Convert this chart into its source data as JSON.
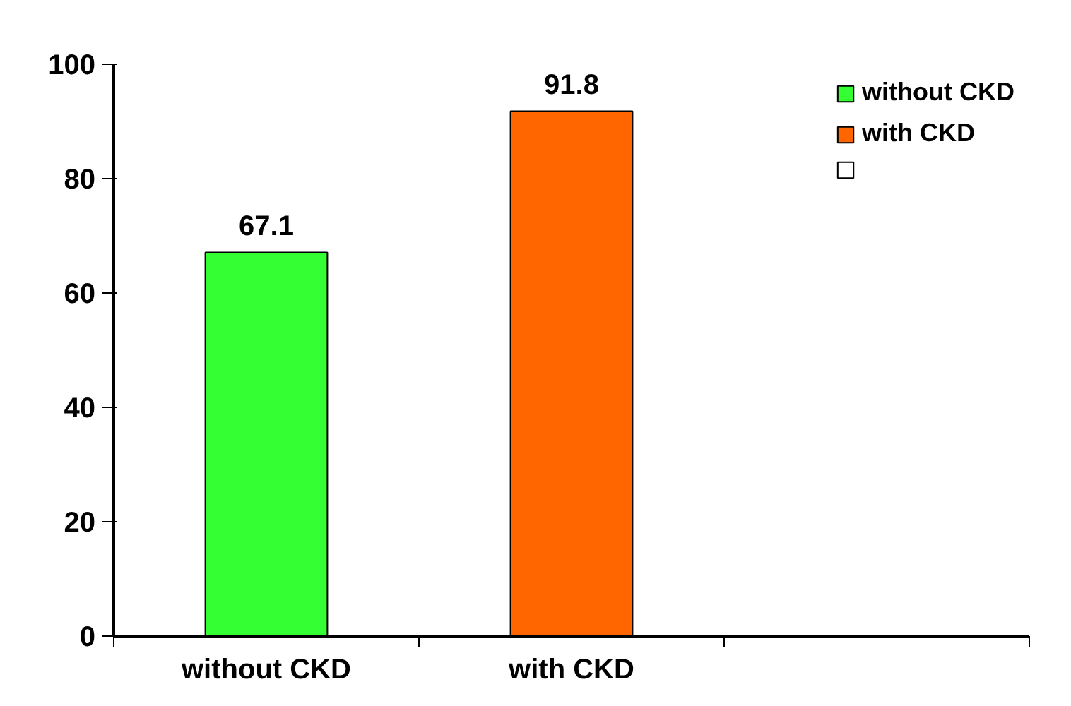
{
  "chart_data": {
    "type": "bar",
    "categories": [
      "without CKD",
      "with CKD",
      null
    ],
    "series": [
      {
        "name": "without CKD",
        "color": "#33ff33",
        "values": [
          67.1,
          null,
          null
        ]
      },
      {
        "name": "with CKD",
        "color": "#ff6600",
        "values": [
          null,
          91.8,
          null
        ]
      },
      {
        "color": "#ffffff",
        "values": [
          null,
          null,
          null
        ]
      }
    ],
    "ylim": [
      0,
      100
    ],
    "yticks": [
      0,
      20,
      40,
      60,
      80,
      100
    ],
    "grid": false,
    "legend": "top right",
    "data_labels": true
  }
}
